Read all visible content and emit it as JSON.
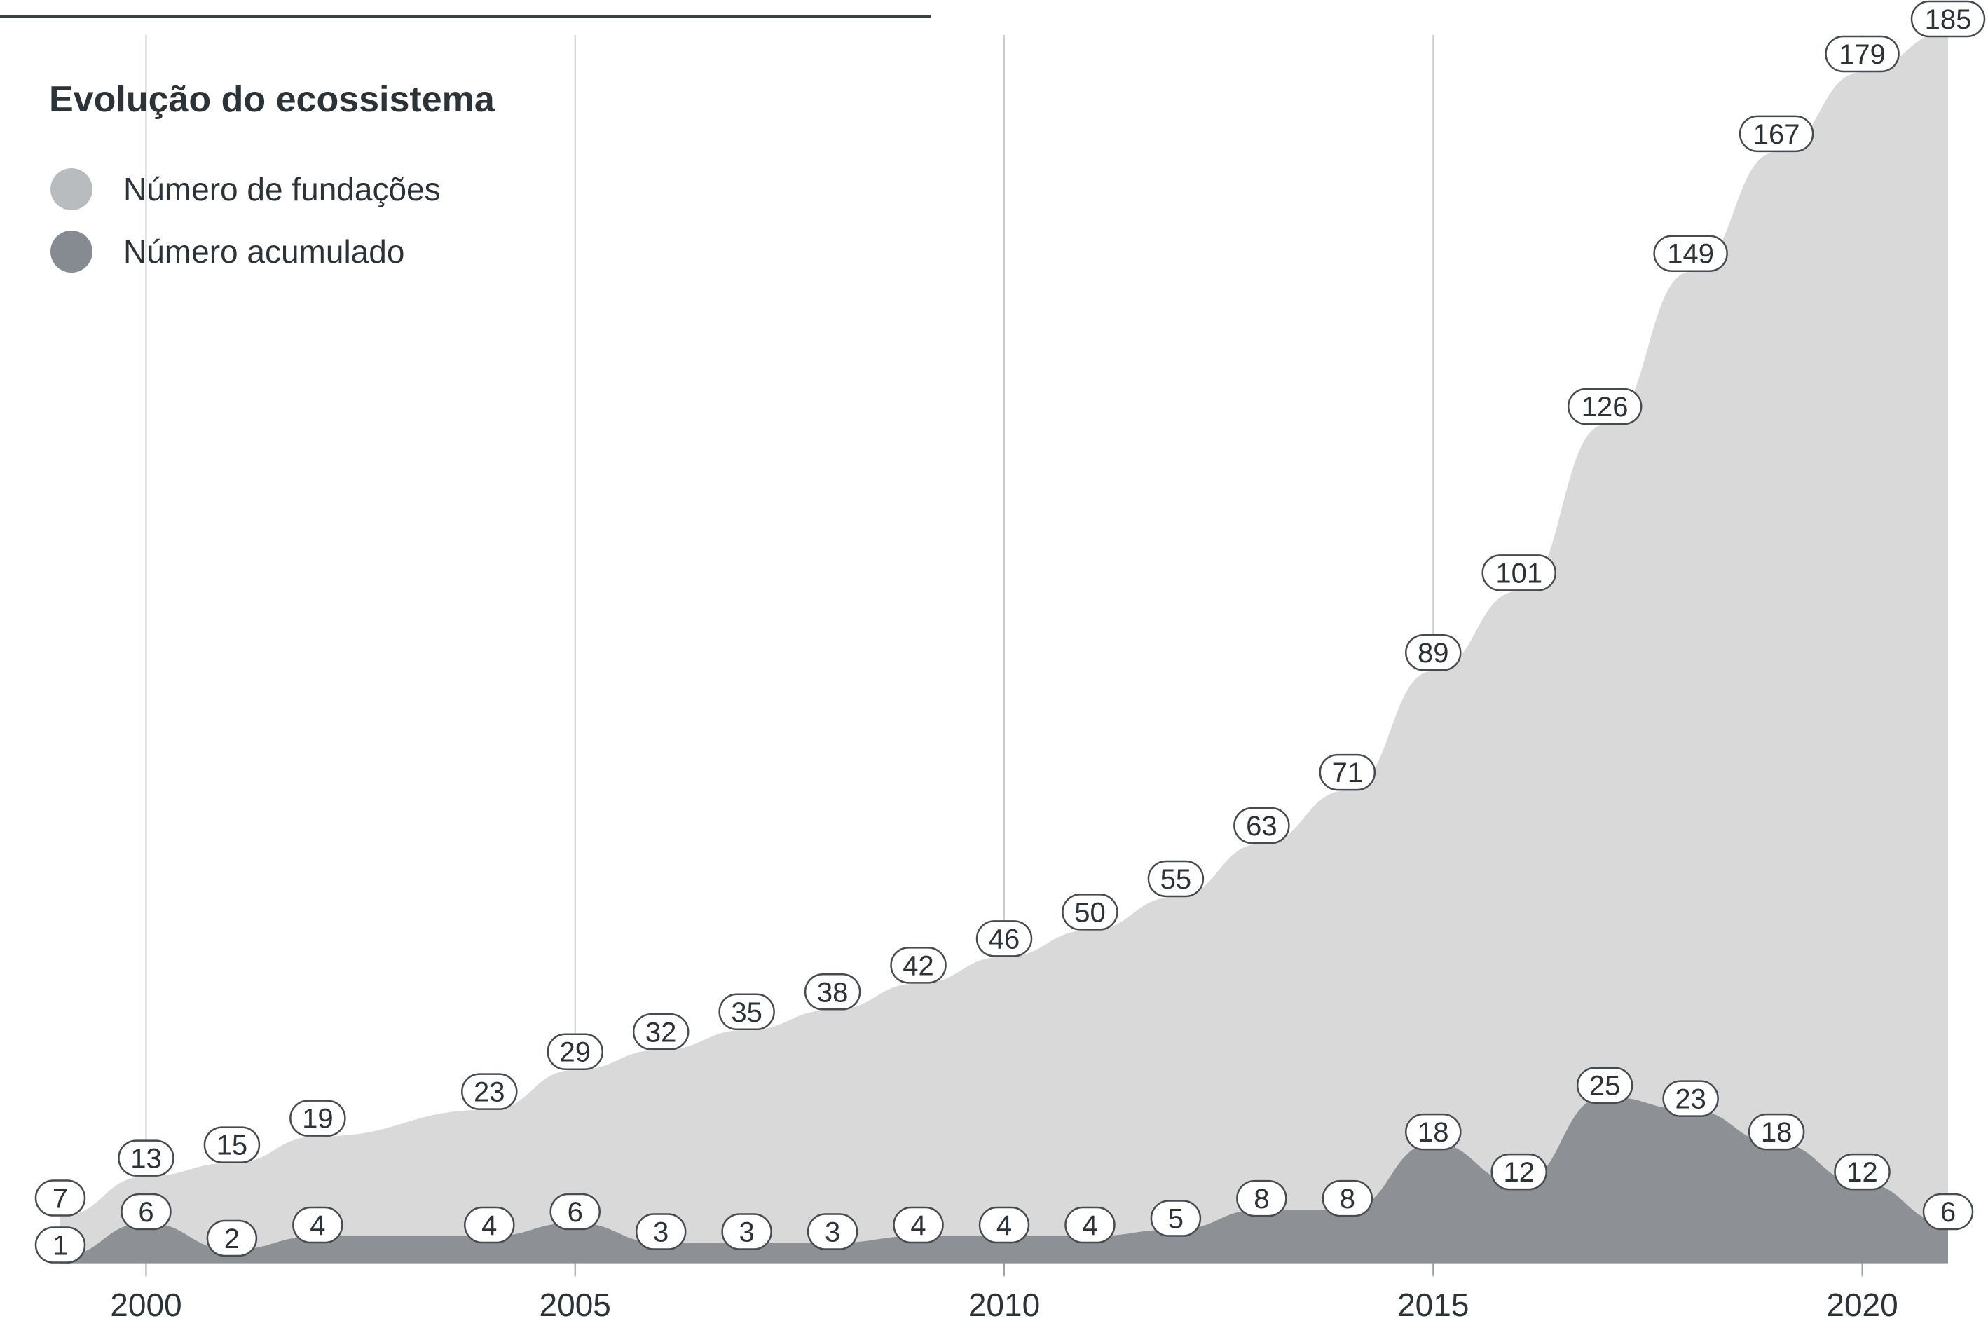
{
  "colors": {
    "fundacoes": "#d9d9da",
    "acumulado": "#8d9196",
    "legend_fundacoes": "#b9bcbf",
    "legend_acumulado": "#858b91",
    "label_border": "#454b51",
    "text": "#2b3238",
    "gridline": "#c9cbcd"
  },
  "legend": {
    "title": "Evolução do ecossistema",
    "items": [
      {
        "label": "Número de fundações"
      },
      {
        "label": "Número acumulado"
      }
    ]
  },
  "chart_data": {
    "type": "area",
    "title": "Evolução do ecossistema",
    "x_ticks": [
      "2000",
      "2005",
      "2010",
      "2015",
      "2020"
    ],
    "x": [
      1999,
      2000,
      2001,
      2002,
      2004,
      2005,
      2006,
      2007,
      2008,
      2009,
      2010,
      2011,
      2012,
      2013,
      2014,
      2015,
      2016,
      2017,
      2018,
      2019,
      2020,
      2021
    ],
    "xlim": [
      1999,
      2021
    ],
    "ylim": [
      0,
      185
    ],
    "legend_position": "top-left",
    "grid": "vertical lines at ticks",
    "series": [
      {
        "name": "Número de fundações",
        "values": [
          7,
          13,
          15,
          19,
          23,
          29,
          32,
          35,
          38,
          42,
          46,
          50,
          55,
          63,
          71,
          89,
          101,
          126,
          149,
          167,
          179,
          185
        ]
      },
      {
        "name": "Número acumulado",
        "values": [
          1,
          6,
          2,
          4,
          4,
          6,
          3,
          3,
          3,
          4,
          4,
          4,
          5,
          8,
          8,
          18,
          12,
          25,
          23,
          18,
          12,
          6
        ]
      }
    ]
  }
}
